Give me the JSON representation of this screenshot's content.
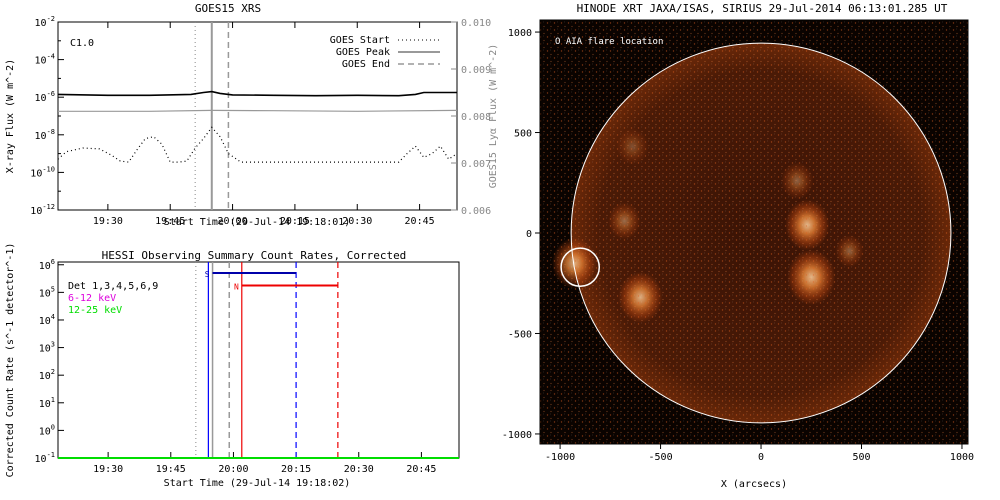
{
  "chart_data": [
    {
      "type": "line",
      "title": "GOES15 XRS",
      "xlabel": "Start Time (29-Jul-14 19:18:01)",
      "ylabel": "X-ray Flux (W m^-2)",
      "ylabel_right": "GOES15 Lyα Flux (W m^-2)",
      "flare_class": "C1.0",
      "x_ticks": [
        "19:30",
        "19:45",
        "20:00",
        "20:15",
        "20:30",
        "20:45"
      ],
      "y_ticks": [
        "10^-2",
        "10^-4",
        "10^-6",
        "10^-8",
        "10^-10",
        "10^-12"
      ],
      "y2_ticks": [
        "0.010",
        "0.009",
        "0.008",
        "0.007",
        "0.006"
      ],
      "xlim_minutes": [
        18,
        114
      ],
      "ylim_log10": [
        -12,
        -2
      ],
      "y2lim": [
        0.006,
        0.01
      ],
      "legend": [
        {
          "label": "GOES Start",
          "style": "dotted"
        },
        {
          "label": "GOES Peak",
          "style": "solid"
        },
        {
          "label": "GOES End",
          "style": "dashed"
        }
      ],
      "legend_position": "top-right",
      "markers_minutes": {
        "start": 51,
        "peak": 55,
        "end": 59
      },
      "series": [
        {
          "name": "",
          "color": "#000000",
          "style": "solid",
          "x": [
            18,
            30,
            40,
            50,
            53,
            55,
            57,
            60,
            70,
            80,
            90,
            100,
            104,
            106,
            114
          ],
          "log10_values": [
            -5.85,
            -5.9,
            -5.9,
            -5.85,
            -5.75,
            -5.7,
            -5.8,
            -5.88,
            -5.9,
            -5.92,
            -5.9,
            -5.92,
            -5.85,
            -5.75,
            -5.75
          ]
        },
        {
          "name": "",
          "color": "#999999",
          "style": "solid",
          "x": [
            18,
            40,
            55,
            70,
            90,
            114
          ],
          "log10_values": [
            -6.75,
            -6.75,
            -6.7,
            -6.72,
            -6.75,
            -6.7
          ]
        },
        {
          "name": "",
          "color": "#000000",
          "style": "dotted",
          "x": [
            18,
            20,
            24,
            28,
            31,
            33,
            35,
            37,
            39,
            41,
            43,
            45,
            47,
            49,
            51,
            53,
            55,
            57,
            59,
            62,
            70,
            80,
            90,
            100,
            102,
            104,
            106,
            108,
            110,
            112,
            114
          ],
          "log10_values": [
            -9.3,
            -8.9,
            -8.7,
            -8.75,
            -9.1,
            -9.4,
            -9.45,
            -8.8,
            -8.2,
            -8.1,
            -8.5,
            -9.45,
            -9.45,
            -9.4,
            -8.7,
            -8.2,
            -7.6,
            -8.1,
            -9.0,
            -9.45,
            -9.45,
            -9.45,
            -9.45,
            -9.45,
            -9.0,
            -8.6,
            -9.2,
            -9.0,
            -8.6,
            -9.3,
            -9.0
          ]
        }
      ]
    },
    {
      "type": "line",
      "title": "HESSI Observing Summary Count Rates, Corrected",
      "xlabel": "Start Time (29-Jul-14 19:18:02)",
      "ylabel": "Corrected Count Rate (s^-1 detector^-1)",
      "x_ticks": [
        "19:30",
        "19:45",
        "20:00",
        "20:15",
        "20:30",
        "20:45"
      ],
      "y_ticks": [
        "10^6",
        "10^5",
        "10^4",
        "10^3",
        "10^2",
        "10^1",
        "10^0",
        "10^-1"
      ],
      "xlim_minutes": [
        18,
        114
      ],
      "ylim_log10": [
        -1,
        6
      ],
      "legend": [
        {
          "label": "Det 1,3,4,5,6,9",
          "color": "#000000"
        },
        {
          "label": "6-12 keV",
          "color": "#dd00dd"
        },
        {
          "label": "12-25 keV",
          "color": "#00dd00"
        }
      ],
      "legend_position": "top-left",
      "goes_markers_minutes": {
        "start": 51,
        "peak": 55,
        "end": 59
      },
      "annotations": [
        {
          "label": "S",
          "color": "#0000aa",
          "x_start": 55,
          "x_end": 75,
          "log10_y": 5.7
        },
        {
          "label": "N",
          "color": "#ee0000",
          "x_start": 62,
          "x_end": 85,
          "log10_y": 5.25
        }
      ],
      "vertical_lines": [
        {
          "color": "#0000ff",
          "style": "solid",
          "x": 54
        },
        {
          "color": "#0000ff",
          "style": "dashed",
          "x": 75
        },
        {
          "color": "#ee0000",
          "style": "solid",
          "x": 62
        },
        {
          "color": "#ee0000",
          "style": "dashed",
          "x": 85
        }
      ],
      "series": [
        {
          "name": "12-25 keV",
          "color": "#00dd00",
          "x": [
            18,
            114
          ],
          "log10_values": [
            -1,
            -1
          ]
        }
      ]
    },
    {
      "type": "heatmap",
      "title": "HINODE XRT JAXA/ISAS, SIRIUS 29-Jul-2014 06:13:01.285 UT",
      "xlabel": "X (arcsecs)",
      "ylabel": "",
      "x_ticks": [
        "-1000",
        "-500",
        "0",
        "500",
        "1000"
      ],
      "y_ticks": [
        "1000",
        "500",
        "0",
        "-500",
        "-1000"
      ],
      "xlim": [
        -1100,
        1030
      ],
      "ylim": [
        -1050,
        1060
      ],
      "annotation": "O AIA flare location",
      "flare_location_arcsec": {
        "x": -900,
        "y": -170,
        "radius": 95
      },
      "limb_radius_arcsec": 945,
      "bright_regions": [
        {
          "x": -930,
          "y": -150,
          "r": 110,
          "intensity": 0.8
        },
        {
          "x": -600,
          "y": -320,
          "r": 110,
          "intensity": 0.8
        },
        {
          "x": -680,
          "y": 60,
          "r": 80,
          "intensity": 0.45
        },
        {
          "x": 230,
          "y": 40,
          "r": 110,
          "intensity": 0.85
        },
        {
          "x": 250,
          "y": -220,
          "r": 120,
          "intensity": 0.85
        },
        {
          "x": 180,
          "y": 260,
          "r": 80,
          "intensity": 0.4
        },
        {
          "x": 440,
          "y": -90,
          "r": 70,
          "intensity": 0.4
        },
        {
          "x": -640,
          "y": 430,
          "r": 80,
          "intensity": 0.3
        }
      ],
      "colors": {
        "dark": "#0a0300",
        "mid": "#c84a10",
        "bright": "#ffd2a0",
        "contour": "#ffffff"
      }
    }
  ]
}
